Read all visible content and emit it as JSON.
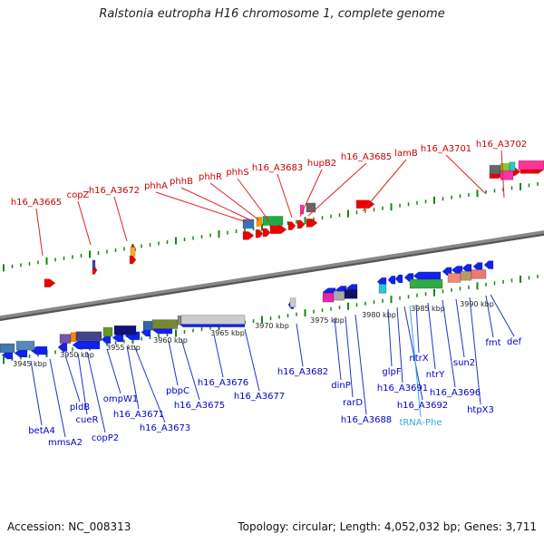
{
  "title": "Ralstonia eutropha H16 chromosome 1, complete genome",
  "footer": {
    "accession": "Accession: NC_008313",
    "summary": "Topology: circular; Length: 4,052,032 bp; Genes: 3,711"
  },
  "colors": {
    "upper_label": "#cc0000",
    "lower_label": "#0000cc",
    "trna_label": "#33aadd",
    "backbone": "#888888",
    "ticks": "#118811"
  },
  "axis": {
    "unit": "kbp",
    "ticks": [
      "3945 kbp",
      "3950 kbp",
      "3955 kbp",
      "3960 kbp",
      "3965 kbp",
      "3970 kbp",
      "3975 kbp",
      "3980 kbp",
      "3985 kbp",
      "3990 kbp"
    ]
  },
  "upper_labels": [
    "h16_A3665",
    "copZ",
    "h16_A3672",
    "phhA",
    "phhB",
    "phhR",
    "phhS",
    "h16_A3683",
    "hupB2",
    "h16_A3685",
    "lamB",
    "h16_A3701",
    "h16_A3702"
  ],
  "lower_labels": [
    "betA4",
    "mmsA2",
    "pldB",
    "cueR",
    "copP2",
    "ompW1",
    "h16_A3671",
    "h16_A3673",
    "pbpC",
    "h16_A3675",
    "h16_A3676",
    "h16_A3677",
    "h16_A3682",
    "dinP",
    "rarD",
    "h16_A3688",
    "glpF",
    "h16_A3691",
    "h16_A3692",
    "tRNA-Phe",
    "ntrX",
    "ntrY",
    "h16_A3696",
    "sun2",
    "htpX3",
    "fmt",
    "def"
  ]
}
